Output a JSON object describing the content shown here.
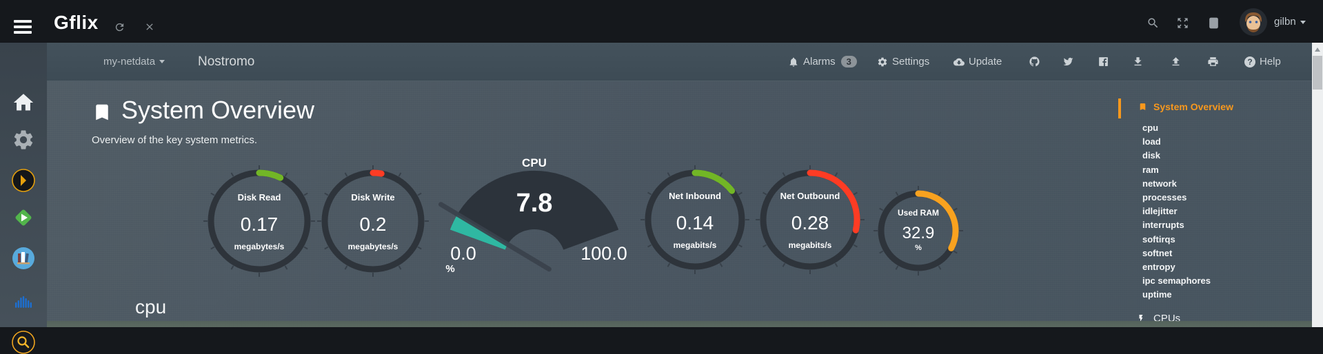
{
  "topbar": {
    "brand": "Gflix",
    "username": "gilbn"
  },
  "navbar": {
    "server_dropdown": "my-netdata",
    "hostname": "Nostromo",
    "alarms_label": "Alarms",
    "alarms_count": "3",
    "settings_label": "Settings",
    "update_label": "Update",
    "help_label": "Help",
    "help_mark": "?"
  },
  "main": {
    "title": "System Overview",
    "subtitle": "Overview of the key system metrics.",
    "section_heading": "cpu",
    "gauges": [
      {
        "id": "disk-read",
        "label": "Disk Read",
        "value": "0.17",
        "units": "megabytes/s",
        "arc_deg": 26,
        "arc_color": "#72b626"
      },
      {
        "id": "disk-write",
        "label": "Disk Write",
        "value": "0.2",
        "units": "megabytes/s",
        "arc_deg": 10,
        "arc_color": "#fd3c24"
      },
      {
        "id": "net-inbound",
        "label": "Net Inbound",
        "value": "0.14",
        "units": "megabits/s",
        "arc_deg": 52,
        "arc_color": "#72b626"
      },
      {
        "id": "net-outbound",
        "label": "Net Outbound",
        "value": "0.28",
        "units": "megabits/s",
        "arc_deg": 103,
        "arc_color": "#fd3c24"
      },
      {
        "id": "used-ram",
        "label": "Used RAM",
        "value": "32.9",
        "units": "%",
        "arc_deg": 118,
        "arc_color": "#f9a21f"
      }
    ],
    "cpu_gauge": {
      "label": "CPU",
      "value": "7.8",
      "min": "0.0",
      "max": "100.0",
      "units": "%",
      "percent": 7.8,
      "fill_color": "#2fb8a2"
    }
  },
  "menu": {
    "active": "System Overview",
    "items": [
      "cpu",
      "load",
      "disk",
      "ram",
      "network",
      "processes",
      "idlejitter",
      "interrupts",
      "softirqs",
      "softnet",
      "entropy",
      "ipc semaphores",
      "uptime"
    ],
    "cpus_label": "CPUs"
  },
  "colors": {
    "accent_orange": "#f8981d",
    "gauge_ring": "#2e343b",
    "gauge_green": "#72b626",
    "gauge_red": "#fd3c24",
    "gauge_orange": "#f9a21f",
    "gauge_teal": "#2fb8a2"
  },
  "chart_data": [
    {
      "type": "gauge",
      "title": "Disk Read",
      "value": 0.17,
      "units": "megabytes/s"
    },
    {
      "type": "gauge",
      "title": "Disk Write",
      "value": 0.2,
      "units": "megabytes/s"
    },
    {
      "type": "gauge",
      "title": "CPU",
      "value": 7.8,
      "units": "%",
      "min": 0.0,
      "max": 100.0
    },
    {
      "type": "gauge",
      "title": "Net Inbound",
      "value": 0.14,
      "units": "megabits/s"
    },
    {
      "type": "gauge",
      "title": "Net Outbound",
      "value": 0.28,
      "units": "megabits/s"
    },
    {
      "type": "gauge",
      "title": "Used RAM",
      "value": 32.9,
      "units": "%"
    }
  ]
}
